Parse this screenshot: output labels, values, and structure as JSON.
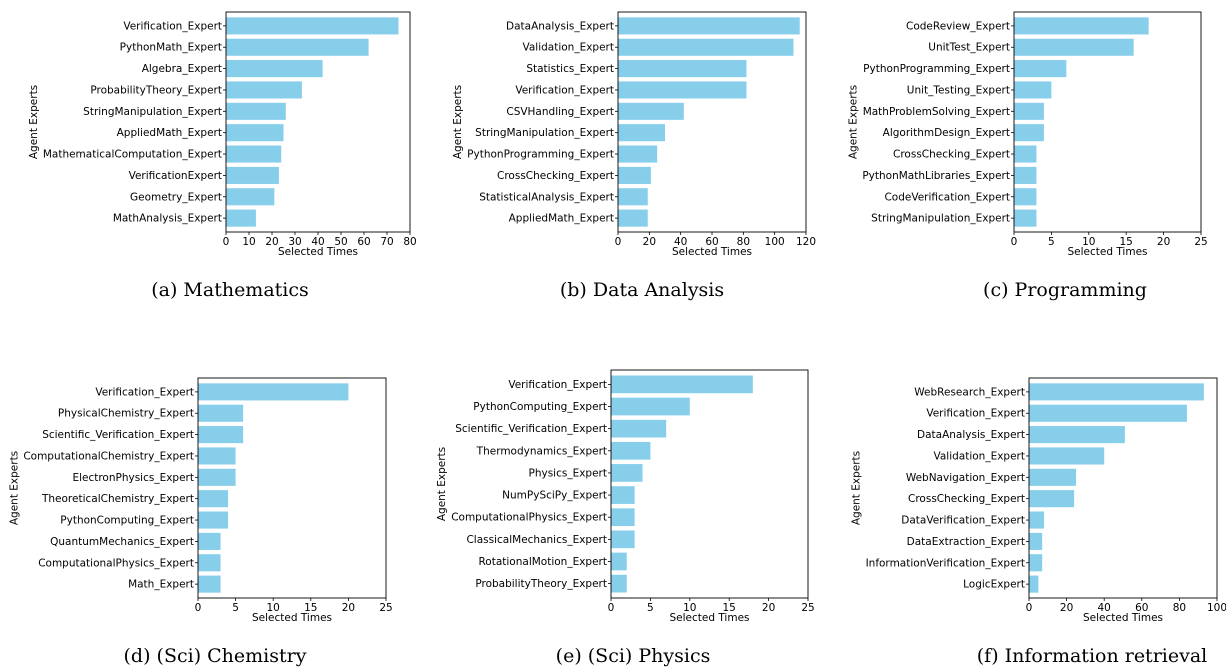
{
  "style": {
    "bar_color": "#87ceeb",
    "axis_color": "#000000"
  },
  "chart_data": [
    {
      "type": "bar",
      "orientation": "horizontal",
      "caption": "(a) Mathematics",
      "xlabel": "Selected Times",
      "ylabel": "Agent Experts",
      "xlim": [
        0,
        80
      ],
      "xticks": [
        0,
        10,
        20,
        30,
        40,
        50,
        60,
        70,
        80
      ],
      "categories": [
        "Verification_Expert",
        "PythonMath_Expert",
        "Algebra_Expert",
        "ProbabilityTheory_Expert",
        "StringManipulation_Expert",
        "AppliedMath_Expert",
        "MathematicalComputation_Expert",
        "VerificationExpert",
        "Geometry_Expert",
        "MathAnalysis_Expert"
      ],
      "values": [
        75,
        62,
        42,
        33,
        26,
        25,
        24,
        23,
        21,
        13
      ]
    },
    {
      "type": "bar",
      "orientation": "horizontal",
      "caption": "(b) Data Analysis",
      "xlabel": "Selected Times",
      "ylabel": "Agent Experts",
      "xlim": [
        0,
        120
      ],
      "xticks": [
        0,
        20,
        40,
        60,
        80,
        100,
        120
      ],
      "categories": [
        "DataAnalysis_Expert",
        "Validation_Expert",
        "Statistics_Expert",
        "Verification_Expert",
        "CSVHandling_Expert",
        "StringManipulation_Expert",
        "PythonProgramming_Expert",
        "CrossChecking_Expert",
        "StatisticalAnalysis_Expert",
        "AppliedMath_Expert"
      ],
      "values": [
        116,
        112,
        82,
        82,
        42,
        30,
        25,
        21,
        19,
        19
      ]
    },
    {
      "type": "bar",
      "orientation": "horizontal",
      "caption": "(c) Programming",
      "xlabel": "Selected Times",
      "ylabel": "Agent Experts",
      "xlim": [
        0,
        25
      ],
      "xticks": [
        0,
        5,
        10,
        15,
        20,
        25
      ],
      "categories": [
        "CodeReview_Expert",
        "UnitTest_Expert",
        "PythonProgramming_Expert",
        "Unit_Testing_Expert",
        "MathProblemSolving_Expert",
        "AlgorithmDesign_Expert",
        "CrossChecking_Expert",
        "PythonMathLibraries_Expert",
        "CodeVerification_Expert",
        "StringManipulation_Expert"
      ],
      "values": [
        18,
        16,
        7,
        5,
        4,
        4,
        3,
        3,
        3,
        3
      ]
    },
    {
      "type": "bar",
      "orientation": "horizontal",
      "caption": "(d) (Sci) Chemistry",
      "xlabel": "Selected Times",
      "ylabel": "Agent Experts",
      "xlim": [
        0,
        25
      ],
      "xticks": [
        0,
        5,
        10,
        15,
        20,
        25
      ],
      "categories": [
        "Verification_Expert",
        "PhysicalChemistry_Expert",
        "Scientific_Verification_Expert",
        "ComputationalChemistry_Expert",
        "ElectronPhysics_Expert",
        "TheoreticalChemistry_Expert",
        "PythonComputing_Expert",
        "QuantumMechanics_Expert",
        "ComputationalPhysics_Expert",
        "Math_Expert"
      ],
      "values": [
        20,
        6,
        6,
        5,
        5,
        4,
        4,
        3,
        3,
        3
      ]
    },
    {
      "type": "bar",
      "orientation": "horizontal",
      "caption": "(e) (Sci) Physics",
      "xlabel": "Selected Times",
      "ylabel": "Agent Experts",
      "xlim": [
        0,
        25
      ],
      "xticks": [
        0,
        5,
        10,
        15,
        20,
        25
      ],
      "categories": [
        "Verification_Expert",
        "PythonComputing_Expert",
        "Scientific_Verification_Expert",
        "Thermodynamics_Expert",
        "Physics_Expert",
        "NumPySciPy_Expert",
        "ComputationalPhysics_Expert",
        "ClassicalMechanics_Expert",
        "RotationalMotion_Expert",
        "ProbabilityTheory_Expert"
      ],
      "values": [
        18,
        10,
        7,
        5,
        4,
        3,
        3,
        3,
        2,
        2
      ]
    },
    {
      "type": "bar",
      "orientation": "horizontal",
      "caption": "(f) Information retrieval",
      "xlabel": "Selected Times",
      "ylabel": "Agent Experts",
      "xlim": [
        0,
        100
      ],
      "xticks": [
        0,
        20,
        40,
        60,
        80,
        100
      ],
      "categories": [
        "WebResearch_Expert",
        "Verification_Expert",
        "DataAnalysis_Expert",
        "Validation_Expert",
        "WebNavigation_Expert",
        "CrossChecking_Expert",
        "DataVerification_Expert",
        "DataExtraction_Expert",
        "InformationVerification_Expert",
        "LogicExpert"
      ],
      "values": [
        93,
        84,
        51,
        40,
        25,
        24,
        8,
        7,
        7,
        5
      ]
    }
  ]
}
